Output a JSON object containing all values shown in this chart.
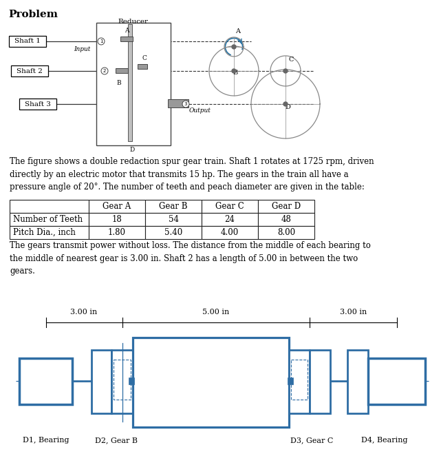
{
  "title": "Problem",
  "paragraph1": "The figure shows a double redaction spur gear train. Shaft 1 rotates at 1725 rpm, driven\ndirectly by an electric motor that transmits 15 hp. The gears in the train all have a\npressure angle of 20°. The number of teeth and peach diameter are given in the table:",
  "paragraph2": "The gears transmit power without loss. The distance from the middle of each bearing to\nthe middle of nearest gear is 3.00 in. Shaft 2 has a length of 5.00 in between the two\ngears.",
  "table_headers": [
    "",
    "Gear A",
    "Gear B",
    "Gear C",
    "Gear D"
  ],
  "table_row1": [
    "Number of Teeth",
    "18",
    "54",
    "24",
    "48"
  ],
  "table_row2": [
    "Pitch Dia., inch",
    "1.80",
    "5.40",
    "4.00",
    "8.00"
  ],
  "dim_labels": [
    "3.00 in",
    "5.00 in",
    "3.00 in"
  ],
  "shaft_labels": [
    "D1, Bearing",
    "D2, Gear B",
    "D3, Gear C",
    "D4, Bearing"
  ],
  "reducer_label": "Reducer",
  "input_label": "Input",
  "output_label": "Output",
  "blue_color": "#2E6DA4",
  "bg_color": "#ffffff",
  "text_color": "#000000"
}
